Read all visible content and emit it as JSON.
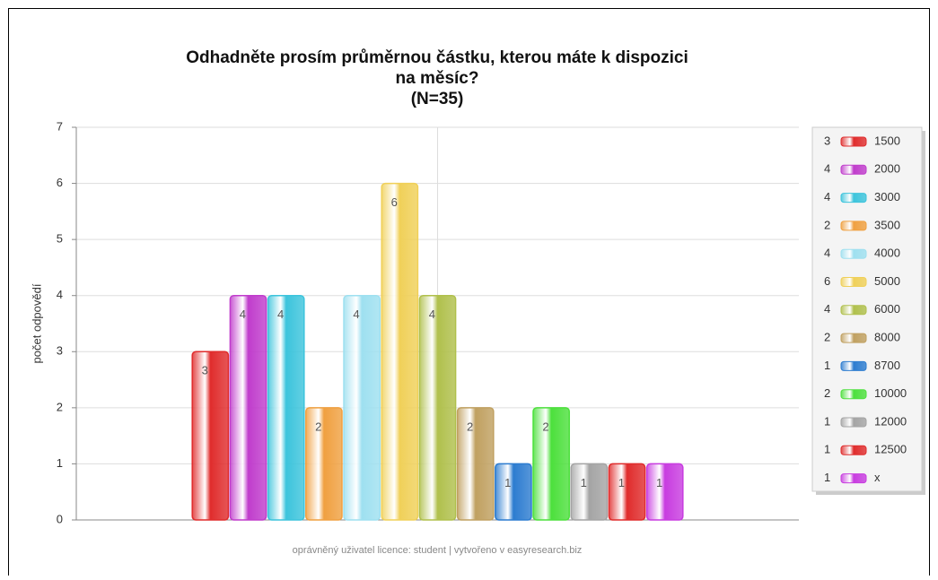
{
  "chart_data": {
    "type": "bar",
    "title": [
      "Odhadněte prosím průměrnou částku, kterou máte k dispozici",
      "na měsíc?",
      "(N=35)"
    ],
    "y_label": "počet odpovědí",
    "footer": "oprávněný uživatel licence: student | vytvořeno v easyresearch.biz",
    "categories": [
      "1500",
      "2000",
      "3000",
      "3500",
      "4000",
      "5000",
      "6000",
      "8000",
      "8700",
      "10000",
      "12000",
      "12500",
      "x"
    ],
    "values": [
      3,
      4,
      4,
      2,
      4,
      6,
      4,
      2,
      1,
      2,
      1,
      1,
      1
    ],
    "colors": [
      "#e02c2c",
      "#c03ccc",
      "#3cc4dc",
      "#f0a040",
      "#9ee0f0",
      "#f0d058",
      "#b0c04c",
      "#c0a060",
      "#2c7cd0",
      "#4ce03c",
      "#a4a4a4",
      "#e02c2c",
      "#c83ce0"
    ],
    "ylim": [
      0,
      7
    ],
    "yticks": [
      0,
      1,
      2,
      3,
      4,
      5,
      6,
      7
    ],
    "grid": true,
    "legend": "right"
  }
}
